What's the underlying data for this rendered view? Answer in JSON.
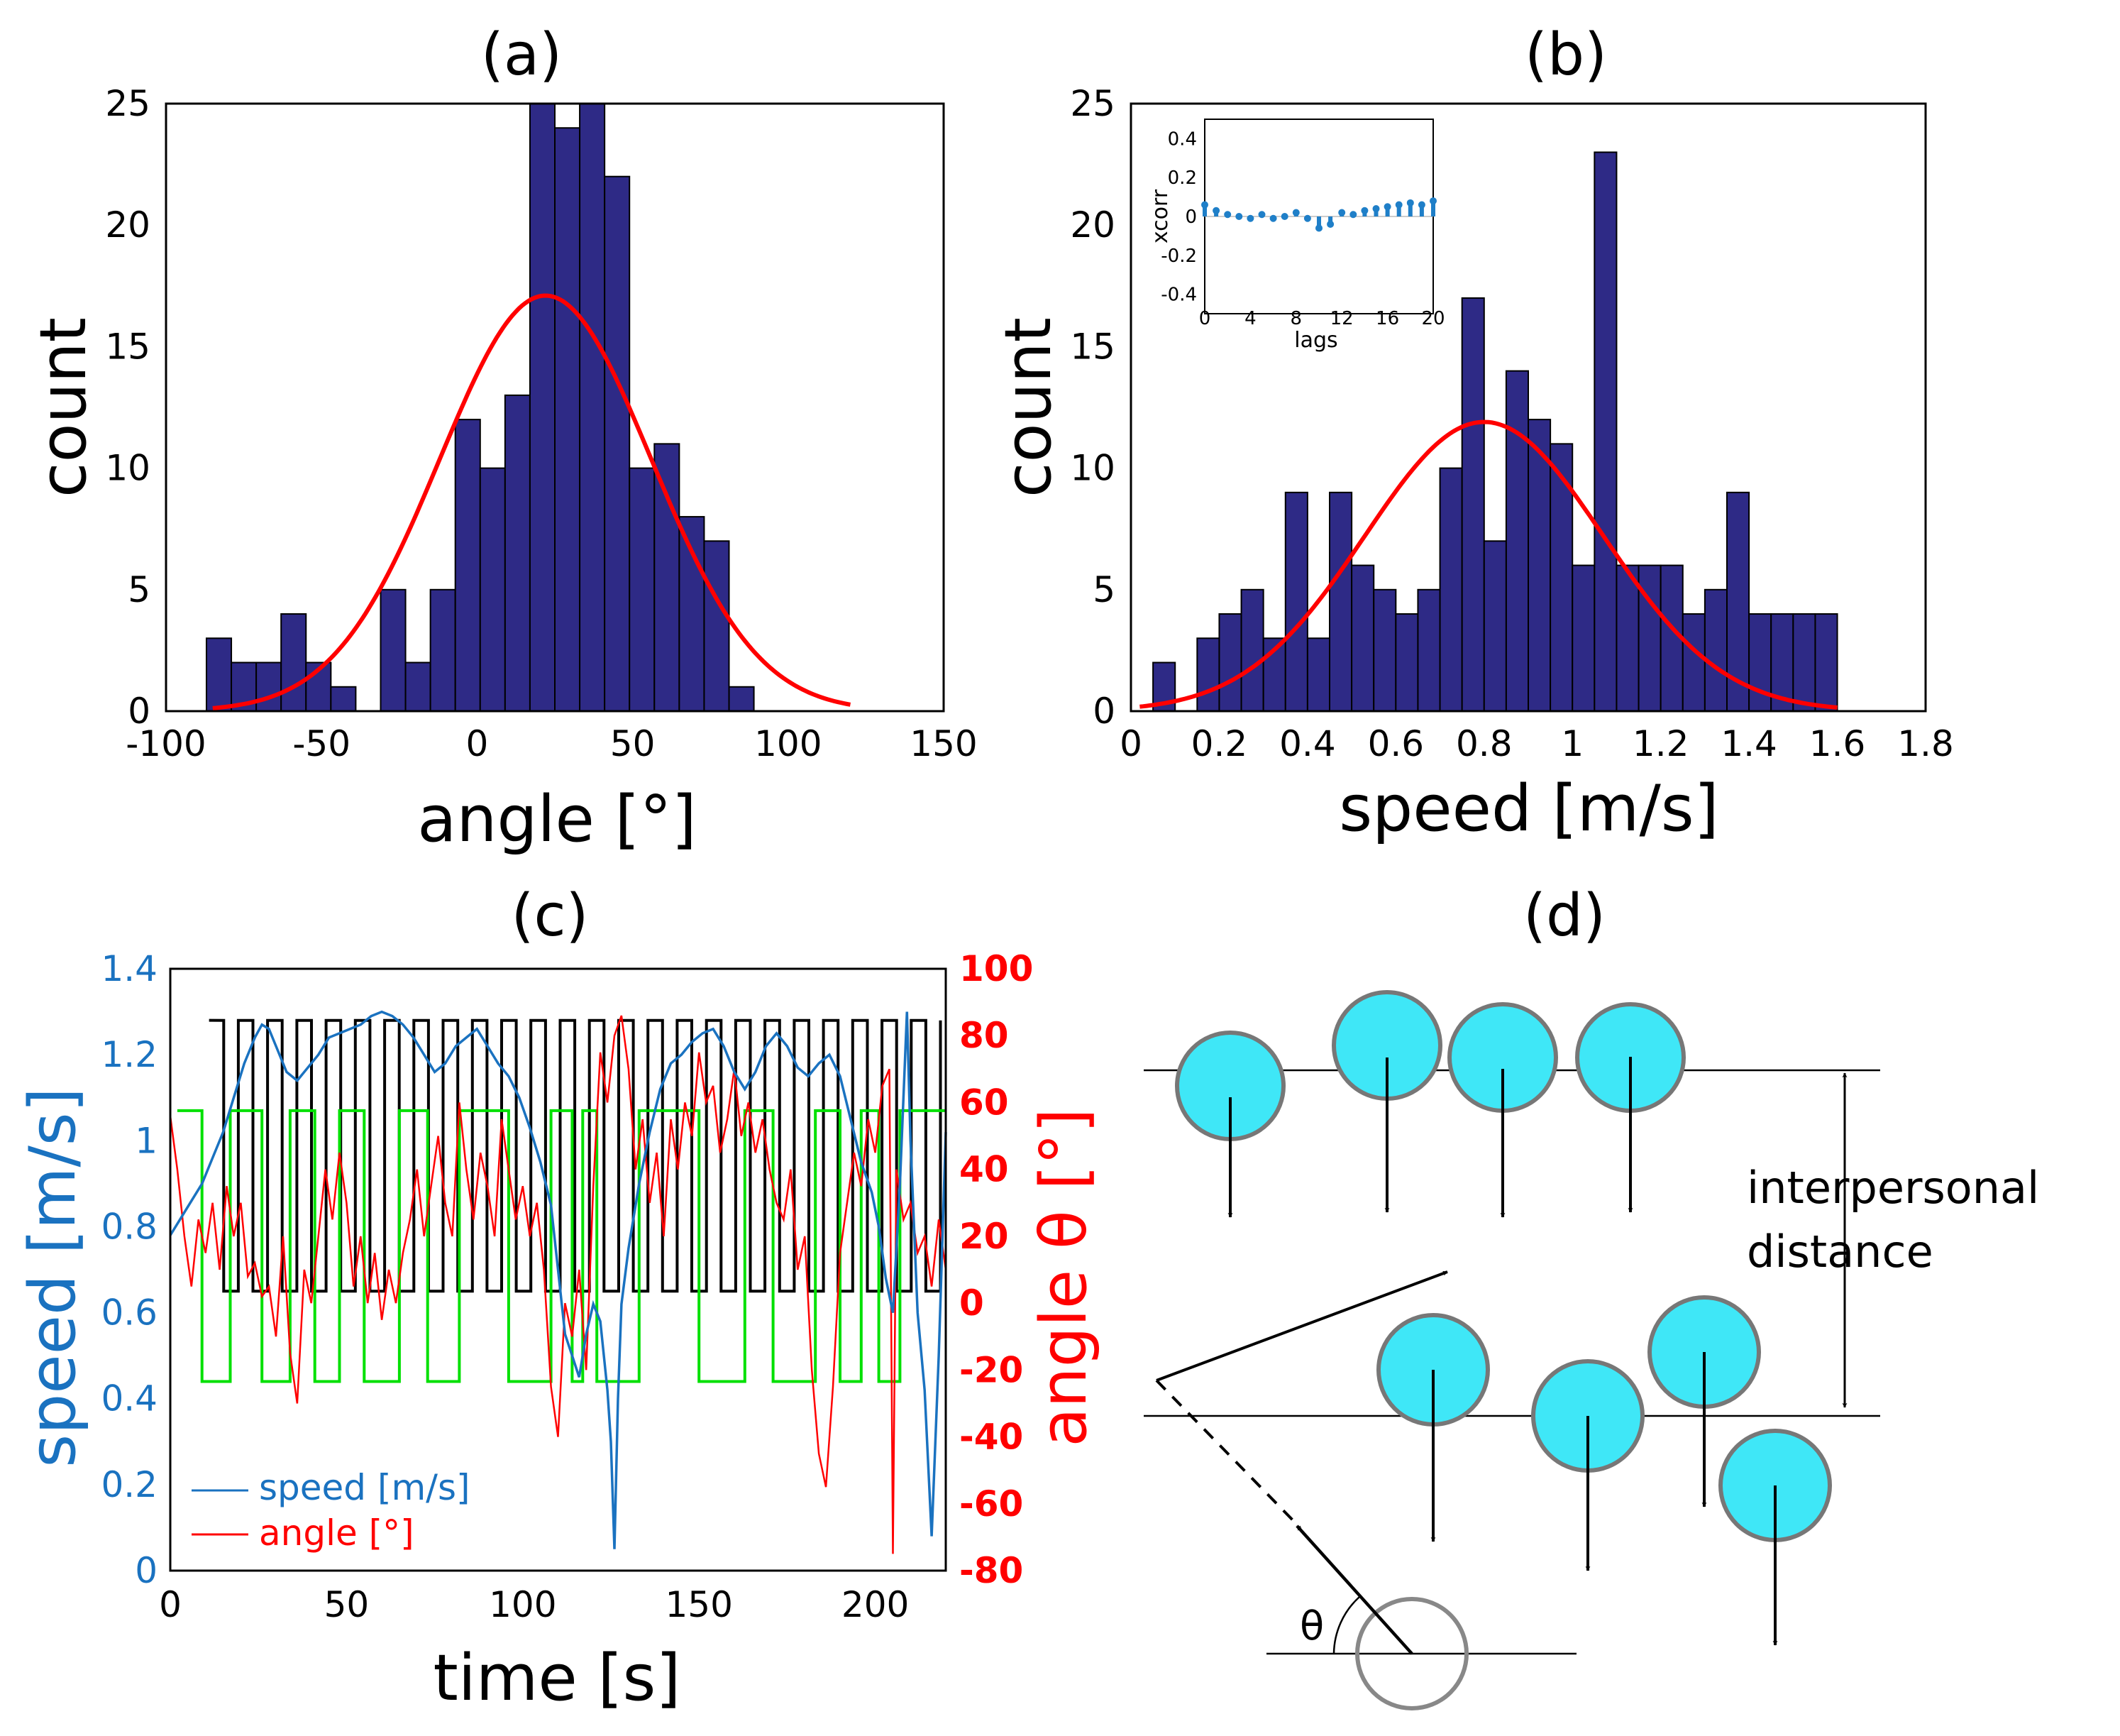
{
  "figure_labels": {
    "a": "(a)",
    "b": "(b)",
    "c": "(c)",
    "d": "(d)"
  },
  "colors": {
    "bar": "#2e2a86",
    "fit": "#ff0000",
    "speed": "#1a72c0",
    "angle": "#ff0000",
    "black_wave": "#000000",
    "green_wave": "#00e000",
    "ped": "#3fe7f7",
    "inset_bar": "#1f7fc8"
  },
  "chart_data": [
    {
      "id": "a",
      "type": "bar",
      "title": "(a)",
      "xlabel": "angle [°]",
      "ylabel": "count",
      "xlim": [
        -100,
        150
      ],
      "ylim": [
        0,
        25
      ],
      "xticks": [
        -100,
        -50,
        0,
        50,
        100,
        150
      ],
      "yticks": [
        0,
        5,
        10,
        15,
        20,
        25
      ],
      "bin_width": 8,
      "bins": [
        {
          "x0": -87,
          "v": 3
        },
        {
          "x0": -79,
          "v": 2
        },
        {
          "x0": -71,
          "v": 2
        },
        {
          "x0": -63,
          "v": 4
        },
        {
          "x0": -55,
          "v": 2
        },
        {
          "x0": -47,
          "v": 1
        },
        {
          "x0": -39,
          "v": 0
        },
        {
          "x0": -31,
          "v": 5
        },
        {
          "x0": -23,
          "v": 2
        },
        {
          "x0": -15,
          "v": 5
        },
        {
          "x0": -7,
          "v": 12
        },
        {
          "x0": 1,
          "v": 10
        },
        {
          "x0": 9,
          "v": 13
        },
        {
          "x0": 17,
          "v": 25
        },
        {
          "x0": 25,
          "v": 24
        },
        {
          "x0": 33,
          "v": 25
        },
        {
          "x0": 41,
          "v": 22
        },
        {
          "x0": 49,
          "v": 10
        },
        {
          "x0": 57,
          "v": 11
        },
        {
          "x0": 65,
          "v": 8
        },
        {
          "x0": 73,
          "v": 7
        },
        {
          "x0": 81,
          "v": 1
        }
      ],
      "fit": {
        "kind": "gaussian",
        "mean": 22,
        "sd": 34,
        "amplitude": 17.1,
        "range": [
          -85,
          120
        ]
      }
    },
    {
      "id": "b",
      "type": "bar",
      "title": "(b)",
      "xlabel": "speed [m/s]",
      "ylabel": "count",
      "xlim": [
        0,
        1.8
      ],
      "ylim": [
        0,
        25
      ],
      "xticks": [
        0,
        0.2,
        0.4,
        0.6,
        0.8,
        1,
        1.2,
        1.4,
        1.6,
        1.8
      ],
      "yticks": [
        0,
        5,
        10,
        15,
        20,
        25
      ],
      "bin_width": 0.05,
      "bins": [
        {
          "x0": 0.05,
          "v": 2
        },
        {
          "x0": 0.1,
          "v": 0
        },
        {
          "x0": 0.15,
          "v": 3
        },
        {
          "x0": 0.2,
          "v": 4
        },
        {
          "x0": 0.25,
          "v": 5
        },
        {
          "x0": 0.3,
          "v": 3
        },
        {
          "x0": 0.35,
          "v": 9
        },
        {
          "x0": 0.4,
          "v": 3
        },
        {
          "x0": 0.45,
          "v": 9
        },
        {
          "x0": 0.5,
          "v": 6
        },
        {
          "x0": 0.55,
          "v": 5
        },
        {
          "x0": 0.6,
          "v": 4
        },
        {
          "x0": 0.65,
          "v": 5
        },
        {
          "x0": 0.7,
          "v": 10
        },
        {
          "x0": 0.75,
          "v": 17
        },
        {
          "x0": 0.8,
          "v": 7
        },
        {
          "x0": 0.85,
          "v": 14
        },
        {
          "x0": 0.9,
          "v": 12
        },
        {
          "x0": 0.95,
          "v": 11
        },
        {
          "x0": 1.0,
          "v": 6
        },
        {
          "x0": 1.05,
          "v": 23
        },
        {
          "x0": 1.1,
          "v": 6
        },
        {
          "x0": 1.15,
          "v": 6
        },
        {
          "x0": 1.2,
          "v": 6
        },
        {
          "x0": 1.25,
          "v": 4
        },
        {
          "x0": 1.3,
          "v": 5
        },
        {
          "x0": 1.35,
          "v": 9
        },
        {
          "x0": 1.4,
          "v": 4
        },
        {
          "x0": 1.45,
          "v": 4
        },
        {
          "x0": 1.5,
          "v": 4
        },
        {
          "x0": 1.55,
          "v": 4
        }
      ],
      "fit": {
        "kind": "gaussian",
        "mean": 0.8,
        "sd": 0.27,
        "amplitude": 11.9,
        "range": [
          0.02,
          1.6
        ]
      },
      "inset": {
        "type": "stem",
        "xlabel": "lags",
        "ylabel": "xcorr",
        "xlim": [
          0,
          20
        ],
        "ylim": [
          -0.5,
          0.5
        ],
        "xticks": [
          0,
          4,
          8,
          12,
          16,
          20
        ],
        "yticks": [
          -0.4,
          -0.2,
          0,
          0.2,
          0.4
        ],
        "ytick_labels": [
          "-0.4",
          "-0.2",
          "0",
          "0.2",
          "0.4"
        ],
        "lags": [
          0,
          1,
          2,
          3,
          4,
          5,
          6,
          7,
          8,
          9,
          10,
          11,
          12,
          13,
          14,
          15,
          16,
          17,
          18,
          19,
          20
        ],
        "values": [
          0.06,
          0.03,
          0.01,
          0.0,
          -0.01,
          0.01,
          -0.01,
          0.0,
          0.02,
          -0.01,
          -0.06,
          -0.04,
          0.02,
          0.01,
          0.03,
          0.04,
          0.05,
          0.06,
          0.07,
          0.06,
          0.08
        ]
      }
    },
    {
      "id": "c",
      "type": "line",
      "title": "(c)",
      "xlabel": "time [s]",
      "ylabel_left": "speed [m/s]",
      "ylabel_right": "angle θ [°]",
      "xlim": [
        0,
        220
      ],
      "ylim_left": [
        0,
        1.4
      ],
      "ylim_right": [
        -80,
        100
      ],
      "xticks": [
        0,
        50,
        100,
        150,
        200
      ],
      "yticks_left": [
        0,
        0.2,
        0.4,
        0.6,
        0.8,
        1,
        1.2,
        1.4
      ],
      "yticks_right": [
        -80,
        -60,
        -40,
        -20,
        0,
        20,
        40,
        60,
        80,
        100
      ],
      "legend": {
        "speed": "speed [m/s]",
        "angle": "angle [°]"
      },
      "black_wave": {
        "low": 0.65,
        "high": 1.28,
        "t_start": 11,
        "t_end": 220,
        "period": 8.3
      },
      "green_wave": {
        "low": 0.44,
        "high": 1.07,
        "t_start": 2,
        "t_end": 220,
        "edges": [
          2,
          9,
          17,
          26,
          34,
          41,
          48,
          55,
          65,
          73,
          82,
          96,
          108,
          114,
          117,
          121,
          133,
          150,
          163,
          171,
          183,
          190,
          196,
          201,
          207,
          220
        ]
      },
      "speed_series": [
        [
          0,
          0.78
        ],
        [
          3,
          0.82
        ],
        [
          6,
          0.86
        ],
        [
          9,
          0.9
        ],
        [
          12,
          0.96
        ],
        [
          15,
          1.02
        ],
        [
          18,
          1.1
        ],
        [
          21,
          1.18
        ],
        [
          24,
          1.24
        ],
        [
          26,
          1.27
        ],
        [
          28,
          1.26
        ],
        [
          30,
          1.22
        ],
        [
          33,
          1.16
        ],
        [
          36,
          1.14
        ],
        [
          39,
          1.17
        ],
        [
          42,
          1.2
        ],
        [
          45,
          1.24
        ],
        [
          48,
          1.25
        ],
        [
          51,
          1.26
        ],
        [
          54,
          1.27
        ],
        [
          57,
          1.29
        ],
        [
          60,
          1.3
        ],
        [
          63,
          1.29
        ],
        [
          66,
          1.27
        ],
        [
          69,
          1.24
        ],
        [
          72,
          1.2
        ],
        [
          75,
          1.16
        ],
        [
          78,
          1.18
        ],
        [
          81,
          1.22
        ],
        [
          84,
          1.24
        ],
        [
          87,
          1.26
        ],
        [
          90,
          1.22
        ],
        [
          93,
          1.18
        ],
        [
          96,
          1.15
        ],
        [
          99,
          1.1
        ],
        [
          102,
          1.03
        ],
        [
          105,
          0.95
        ],
        [
          108,
          0.85
        ],
        [
          110,
          0.7
        ],
        [
          112,
          0.55
        ],
        [
          114,
          0.5
        ],
        [
          116,
          0.45
        ],
        [
          118,
          0.55
        ],
        [
          120,
          0.62
        ],
        [
          122,
          0.58
        ],
        [
          124,
          0.42
        ],
        [
          125,
          0.3
        ],
        [
          126,
          0.05
        ],
        [
          127,
          0.4
        ],
        [
          128,
          0.62
        ],
        [
          130,
          0.75
        ],
        [
          133,
          0.9
        ],
        [
          136,
          1.02
        ],
        [
          139,
          1.12
        ],
        [
          142,
          1.18
        ],
        [
          145,
          1.2
        ],
        [
          148,
          1.23
        ],
        [
          151,
          1.25
        ],
        [
          154,
          1.26
        ],
        [
          157,
          1.22
        ],
        [
          160,
          1.16
        ],
        [
          163,
          1.12
        ],
        [
          166,
          1.16
        ],
        [
          169,
          1.22
        ],
        [
          172,
          1.25
        ],
        [
          175,
          1.22
        ],
        [
          178,
          1.17
        ],
        [
          181,
          1.15
        ],
        [
          184,
          1.18
        ],
        [
          187,
          1.2
        ],
        [
          190,
          1.15
        ],
        [
          193,
          1.05
        ],
        [
          196,
          0.95
        ],
        [
          199,
          0.88
        ],
        [
          201,
          0.8
        ],
        [
          203,
          0.68
        ],
        [
          205,
          0.6
        ],
        [
          207,
          0.9
        ],
        [
          209,
          1.3
        ],
        [
          210,
          1.0
        ],
        [
          212,
          0.6
        ],
        [
          214,
          0.42
        ],
        [
          216,
          0.08
        ],
        [
          218,
          0.5
        ],
        [
          220,
          1.02
        ]
      ],
      "angle_series": [
        [
          0,
          56
        ],
        [
          2,
          40
        ],
        [
          4,
          20
        ],
        [
          6,
          5
        ],
        [
          8,
          25
        ],
        [
          10,
          15
        ],
        [
          12,
          30
        ],
        [
          14,
          10
        ],
        [
          16,
          35
        ],
        [
          18,
          20
        ],
        [
          20,
          30
        ],
        [
          22,
          8
        ],
        [
          24,
          12
        ],
        [
          26,
          2
        ],
        [
          28,
          5
        ],
        [
          30,
          -10
        ],
        [
          32,
          20
        ],
        [
          34,
          -15
        ],
        [
          36,
          -30
        ],
        [
          38,
          10
        ],
        [
          40,
          0
        ],
        [
          42,
          20
        ],
        [
          44,
          40
        ],
        [
          46,
          25
        ],
        [
          48,
          45
        ],
        [
          50,
          30
        ],
        [
          52,
          5
        ],
        [
          54,
          20
        ],
        [
          56,
          0
        ],
        [
          58,
          15
        ],
        [
          60,
          -5
        ],
        [
          62,
          10
        ],
        [
          64,
          0
        ],
        [
          66,
          15
        ],
        [
          68,
          25
        ],
        [
          70,
          40
        ],
        [
          72,
          20
        ],
        [
          74,
          35
        ],
        [
          76,
          50
        ],
        [
          78,
          30
        ],
        [
          80,
          20
        ],
        [
          82,
          60
        ],
        [
          84,
          40
        ],
        [
          86,
          25
        ],
        [
          88,
          45
        ],
        [
          90,
          35
        ],
        [
          92,
          20
        ],
        [
          94,
          55
        ],
        [
          96,
          40
        ],
        [
          98,
          25
        ],
        [
          100,
          35
        ],
        [
          102,
          20
        ],
        [
          104,
          30
        ],
        [
          106,
          10
        ],
        [
          108,
          -25
        ],
        [
          110,
          -40
        ],
        [
          112,
          0
        ],
        [
          114,
          -10
        ],
        [
          116,
          10
        ],
        [
          118,
          -20
        ],
        [
          120,
          35
        ],
        [
          122,
          75
        ],
        [
          124,
          60
        ],
        [
          126,
          80
        ],
        [
          128,
          86
        ],
        [
          130,
          70
        ],
        [
          132,
          40
        ],
        [
          134,
          55
        ],
        [
          136,
          30
        ],
        [
          138,
          45
        ],
        [
          140,
          20
        ],
        [
          142,
          55
        ],
        [
          144,
          40
        ],
        [
          146,
          60
        ],
        [
          148,
          50
        ],
        [
          150,
          75
        ],
        [
          152,
          60
        ],
        [
          154,
          65
        ],
        [
          156,
          45
        ],
        [
          158,
          55
        ],
        [
          160,
          70
        ],
        [
          162,
          50
        ],
        [
          164,
          60
        ],
        [
          166,
          45
        ],
        [
          168,
          55
        ],
        [
          170,
          40
        ],
        [
          172,
          30
        ],
        [
          174,
          25
        ],
        [
          176,
          40
        ],
        [
          178,
          10
        ],
        [
          180,
          20
        ],
        [
          182,
          -20
        ],
        [
          184,
          -45
        ],
        [
          186,
          -55
        ],
        [
          188,
          -25
        ],
        [
          190,
          15
        ],
        [
          192,
          30
        ],
        [
          194,
          45
        ],
        [
          196,
          35
        ],
        [
          198,
          55
        ],
        [
          200,
          45
        ],
        [
          202,
          65
        ],
        [
          204,
          70
        ],
        [
          205,
          -75
        ],
        [
          206,
          40
        ],
        [
          208,
          25
        ],
        [
          210,
          30
        ],
        [
          212,
          15
        ],
        [
          214,
          20
        ],
        [
          216,
          5
        ],
        [
          218,
          25
        ],
        [
          220,
          10
        ]
      ]
    }
  ],
  "diagram": {
    "title": "(d)",
    "label_line1": "interpersonal",
    "label_line2": "distance",
    "theta": "θ"
  }
}
